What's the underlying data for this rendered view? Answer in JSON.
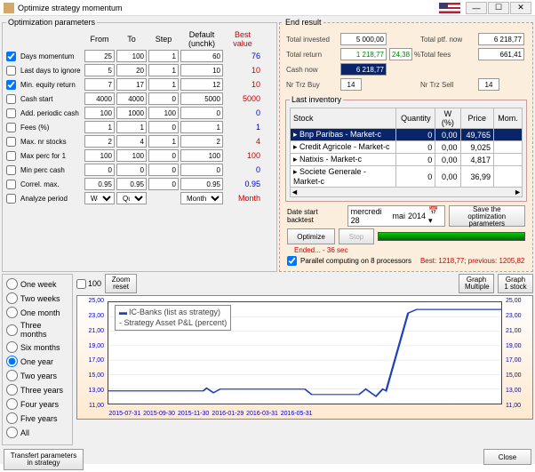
{
  "title": "Optimize strategy momentum",
  "paramHeaders": {
    "from": "From",
    "to": "To",
    "step": "Step",
    "default": "Default (unchk)",
    "best": "Best value"
  },
  "paramRows": [
    {
      "use": true,
      "label": "Days momentum",
      "from": "25",
      "to": "100",
      "step": "1",
      "def": "60",
      "best": "76",
      "red": false
    },
    {
      "use": false,
      "label": "Last days to ignore",
      "from": "5",
      "to": "20",
      "step": "1",
      "def": "10",
      "best": "10",
      "red": true
    },
    {
      "use": true,
      "label": "Min. equity return",
      "from": "7",
      "to": "17",
      "step": "1",
      "def": "12",
      "best": "10",
      "red": true
    },
    {
      "use": false,
      "label": "Cash start",
      "from": "4000",
      "to": "4000",
      "step": "0",
      "def": "5000",
      "best": "5000",
      "red": true
    },
    {
      "use": false,
      "label": "Add. periodic cash",
      "from": "100",
      "to": "1000",
      "step": "100",
      "def": "0",
      "best": "0",
      "red": false
    },
    {
      "use": false,
      "label": "Fees (%)",
      "from": "1",
      "to": "1",
      "step": "0",
      "def": "1",
      "best": "1",
      "red": false
    },
    {
      "use": false,
      "label": "Max. nr stocks",
      "from": "2",
      "to": "4",
      "step": "1",
      "def": "2",
      "best": "4",
      "red": true
    },
    {
      "use": false,
      "label": "Max perc for 1",
      "from": "100",
      "to": "100",
      "step": "0",
      "def": "100",
      "best": "100",
      "red": true
    },
    {
      "use": false,
      "label": "Min perc cash",
      "from": "0",
      "to": "0",
      "step": "0",
      "def": "0",
      "best": "0",
      "red": false
    },
    {
      "use": false,
      "label": "Correl. max.",
      "from": "0.95",
      "to": "0.95",
      "step": "0",
      "def": "0.95",
      "best": "0.95",
      "red": false
    }
  ],
  "analyze": {
    "use": false,
    "label": "Analyze period",
    "p1": "Week",
    "p2": "Quarte",
    "def": "Month",
    "best": "Month"
  },
  "optGroupTitle": "Optimization parameters",
  "endResultTitle": "End result",
  "er": {
    "totalInvestedL": "Total invested",
    "totalInvested": "5 000,00",
    "totalReturnL": "Total return",
    "totalReturn": "1 218,77",
    "totalReturnPct": "24,38",
    "pct": "%",
    "cashNowL": "Cash now",
    "cashNow": "6 218,77",
    "nrTrzBuyL": "Nr Trz Buy",
    "nrTrzBuy": "14",
    "nrTrzSellL": "Nr Trz Sell",
    "nrTrzSell": "14",
    "totalPtfNowL": "Total ptf. now",
    "totalPtfNow": "6 218,77",
    "totalFeesL": "Total fees",
    "totalFees": "661,41"
  },
  "lastInvTitle": "Last inventory",
  "invCols": {
    "stock": "Stock",
    "qty": "Quantity",
    "w": "W (%)",
    "price": "Price",
    "mom": "Mom."
  },
  "invRows": [
    {
      "sel": true,
      "stock": "Bnp Paribas  - Market-c",
      "qty": "0",
      "w": "0,00",
      "price": "49,765",
      "mom": ""
    },
    {
      "sel": false,
      "stock": "Credit Agricole  - Market-c",
      "qty": "0",
      "w": "0,00",
      "price": "9,025",
      "mom": ""
    },
    {
      "sel": false,
      "stock": "Natixis  - Market-c",
      "qty": "0",
      "w": "0,00",
      "price": "4,817",
      "mom": ""
    },
    {
      "sel": false,
      "stock": "Societe Generale  - Market-c",
      "qty": "0",
      "w": "0,00",
      "price": "36,99",
      "mom": ""
    }
  ],
  "dateStartL": "Date start backtest",
  "dateDay": "mercredi  28",
  "dateMon": "mai",
  "dateYear": "2014",
  "saveBtn": "Save the optimization parameters",
  "optimizeBtn": "Optimize",
  "stopBtn": "Stop",
  "endedL": "Ended... - 36 sec",
  "parallelL": "Parallel computing on 8 processors",
  "bestL": "Best: 1218,77; previous: 1205,82",
  "periods": [
    "One week",
    "Two weeks",
    "One month",
    "Three months",
    "Six months",
    "One year",
    "Two years",
    "Three years",
    "Four years",
    "Five years",
    "All"
  ],
  "periodSelected": 5,
  "zoomReset": "Zoom reset",
  "cb100": "100",
  "graphMultiple": "Graph Multiple",
  "graph1": "Graph 1 stock",
  "chart": {
    "legend1": "IC-Banks (list as strategy)",
    "legend2": "- Strategy Asset P&L (percent)",
    "yticks": [
      "25,00",
      "23,00",
      "21,00",
      "19,00",
      "17,00",
      "15,00",
      "13,00",
      "11,00"
    ],
    "xticks": [
      "2015-07-31",
      "2015-09-30",
      "2015-11-30",
      "2016-01-29",
      "2016-03-31",
      "2016-05-31"
    ],
    "lineColor": "#2040c0",
    "poly": "0,98 56,98 58,95 62,100 66,96 116,96 120,102 148,102 152,96 158,104 162,96 164,98 177,12 182,8 232,8"
  },
  "transferBtn": "Transfert parameters in strategy",
  "closeBtn": "Close"
}
